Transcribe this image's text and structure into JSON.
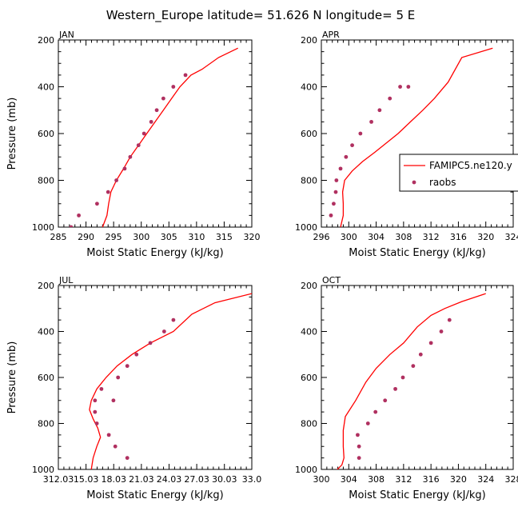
{
  "figure": {
    "title": "Western_Europe  latitude= 51.626 N longitude= 5 E",
    "legend": {
      "model_label": "FAMIPC5.ne120.y",
      "obs_label": "raobs",
      "model_color": "#ff0000",
      "obs_color": "#b03060"
    }
  },
  "chart_data": [
    {
      "type": "line",
      "panel": "JAN",
      "title": "JAN",
      "xlabel": "Moist Static Energy (kJ/kg)",
      "ylabel": "Pressure (mb)",
      "xlim": [
        285,
        320
      ],
      "ylim": [
        1000,
        200
      ],
      "y_inverted": true,
      "xticks": [
        285,
        290,
        295,
        300,
        305,
        310,
        315,
        320
      ],
      "xtick_labels": [
        "285",
        "290",
        "295",
        "300",
        "305",
        "310",
        "315",
        "320"
      ],
      "yticks": [
        200,
        400,
        600,
        800,
        1000
      ],
      "series": [
        {
          "name": "FAMIPC5.ne120.y",
          "style": "line",
          "x": [
            293.0,
            293.8,
            294.1,
            294.5,
            295.5,
            296.8,
            298.0,
            299.5,
            301.0,
            302.5,
            304.0,
            305.5,
            307.0,
            309.0,
            311.0,
            314.0,
            317.5
          ],
          "y": [
            1000,
            950,
            900,
            850,
            800,
            750,
            700,
            650,
            600,
            550,
            500,
            450,
            400,
            350,
            325,
            275,
            235
          ]
        },
        {
          "name": "raobs",
          "style": "points",
          "x": [
            287.3,
            288.7,
            292.0,
            294.0,
            295.5,
            297.0,
            298.0,
            299.5,
            300.5,
            301.8,
            302.8,
            304.0,
            305.8,
            308.0
          ],
          "y": [
            1000,
            950,
            900,
            850,
            800,
            750,
            700,
            650,
            600,
            550,
            500,
            450,
            400,
            350
          ]
        }
      ]
    },
    {
      "type": "line",
      "panel": "APR",
      "title": "APR",
      "xlabel": "Moist Static Energy (kJ/kg)",
      "ylabel": "",
      "xlim": [
        296,
        324
      ],
      "ylim": [
        1000,
        200
      ],
      "y_inverted": true,
      "xticks": [
        296,
        300,
        304,
        308,
        312,
        316,
        320,
        324
      ],
      "xtick_labels": [
        "296",
        "300",
        "304",
        "308",
        "312",
        "316",
        "320",
        "324"
      ],
      "yticks": [
        200,
        400,
        600,
        800,
        1000
      ],
      "series": [
        {
          "name": "FAMIPC5.ne120.y",
          "style": "line",
          "x": [
            298.8,
            299.2,
            299.2,
            299.1,
            299.4,
            300.5,
            302.0,
            303.8,
            305.5,
            307.2,
            309.0,
            310.8,
            312.5,
            314.5,
            316.5,
            321.0
          ],
          "y": [
            1000,
            950,
            900,
            850,
            800,
            760,
            720,
            680,
            640,
            600,
            550,
            500,
            450,
            380,
            275,
            235
          ]
        },
        {
          "name": "raobs",
          "style": "points",
          "x": [
            297.4,
            297.8,
            298.1,
            298.2,
            298.8,
            299.6,
            300.5,
            301.7,
            303.3,
            304.5,
            306.0,
            307.5,
            308.7
          ],
          "y": [
            950,
            900,
            850,
            800,
            750,
            700,
            650,
            600,
            550,
            500,
            450,
            400,
            400
          ]
        }
      ]
    },
    {
      "type": "line",
      "panel": "JUL",
      "title": "JUL",
      "xlabel": "Moist Static Energy (kJ/kg)",
      "ylabel": "Pressure (mb)",
      "xlim": [
        312.03,
        333.0
      ],
      "ylim": [
        1000,
        200
      ],
      "y_inverted": true,
      "xticks": [
        312.03,
        315.03,
        318.03,
        321.03,
        324.03,
        327.03,
        330.03,
        333.0
      ],
      "xtick_labels": [
        "312.03",
        "15.03",
        "18.03",
        "21.03",
        "24.03",
        "27.03",
        "30.03",
        "33.0"
      ],
      "yticks": [
        200,
        400,
        600,
        800,
        1000
      ],
      "series": [
        {
          "name": "FAMIPC5.ne120.y",
          "style": "line",
          "x": [
            315.6,
            315.8,
            316.2,
            316.6,
            316.3,
            315.8,
            315.4,
            315.6,
            316.2,
            317.2,
            318.4,
            320.0,
            322.0,
            324.5,
            326.5,
            329.0,
            333.0
          ],
          "y": [
            1000,
            950,
            900,
            860,
            820,
            780,
            740,
            700,
            650,
            600,
            550,
            500,
            450,
            400,
            325,
            275,
            235
          ]
        },
        {
          "name": "raobs",
          "style": "points",
          "x": [
            316.0,
            316.0,
            316.2,
            316.7,
            317.5,
            318.5,
            319.5,
            320.5,
            322.0,
            323.5,
            324.5,
            318.0,
            318.2,
            319.5
          ],
          "y": [
            750,
            700,
            800,
            650,
            850,
            600,
            550,
            500,
            450,
            400,
            350,
            700,
            900,
            950
          ]
        }
      ]
    },
    {
      "type": "line",
      "panel": "OCT",
      "title": "OCT",
      "xlabel": "Moist Static Energy (kJ/kg)",
      "ylabel": "",
      "xlim": [
        300,
        328
      ],
      "ylim": [
        1000,
        200
      ],
      "y_inverted": true,
      "xticks": [
        300,
        304,
        308,
        312,
        316,
        320,
        324,
        328
      ],
      "xtick_labels": [
        "300",
        "304",
        "308",
        "312",
        "316",
        "320",
        "324",
        "328"
      ],
      "yticks": [
        200,
        400,
        600,
        800,
        1000
      ],
      "series": [
        {
          "name": "FAMIPC5.ne120.y",
          "style": "line",
          "x": [
            302.0,
            303.0,
            303.3,
            303.2,
            303.2,
            303.5,
            305.0,
            306.5,
            308.0,
            310.0,
            312.0,
            314.0,
            316.0,
            318.0,
            320.5,
            324.0
          ],
          "y": [
            1010,
            980,
            950,
            900,
            830,
            770,
            700,
            620,
            560,
            500,
            450,
            380,
            330,
            300,
            270,
            235
          ]
        },
        {
          "name": "raobs",
          "style": "points",
          "x": [
            305.5,
            305.5,
            305.3,
            306.8,
            307.9,
            309.3,
            310.8,
            311.9,
            313.4,
            314.5,
            316.0,
            317.5,
            318.7
          ],
          "y": [
            950,
            900,
            850,
            800,
            750,
            700,
            650,
            600,
            550,
            500,
            450,
            400,
            350
          ]
        }
      ]
    }
  ]
}
